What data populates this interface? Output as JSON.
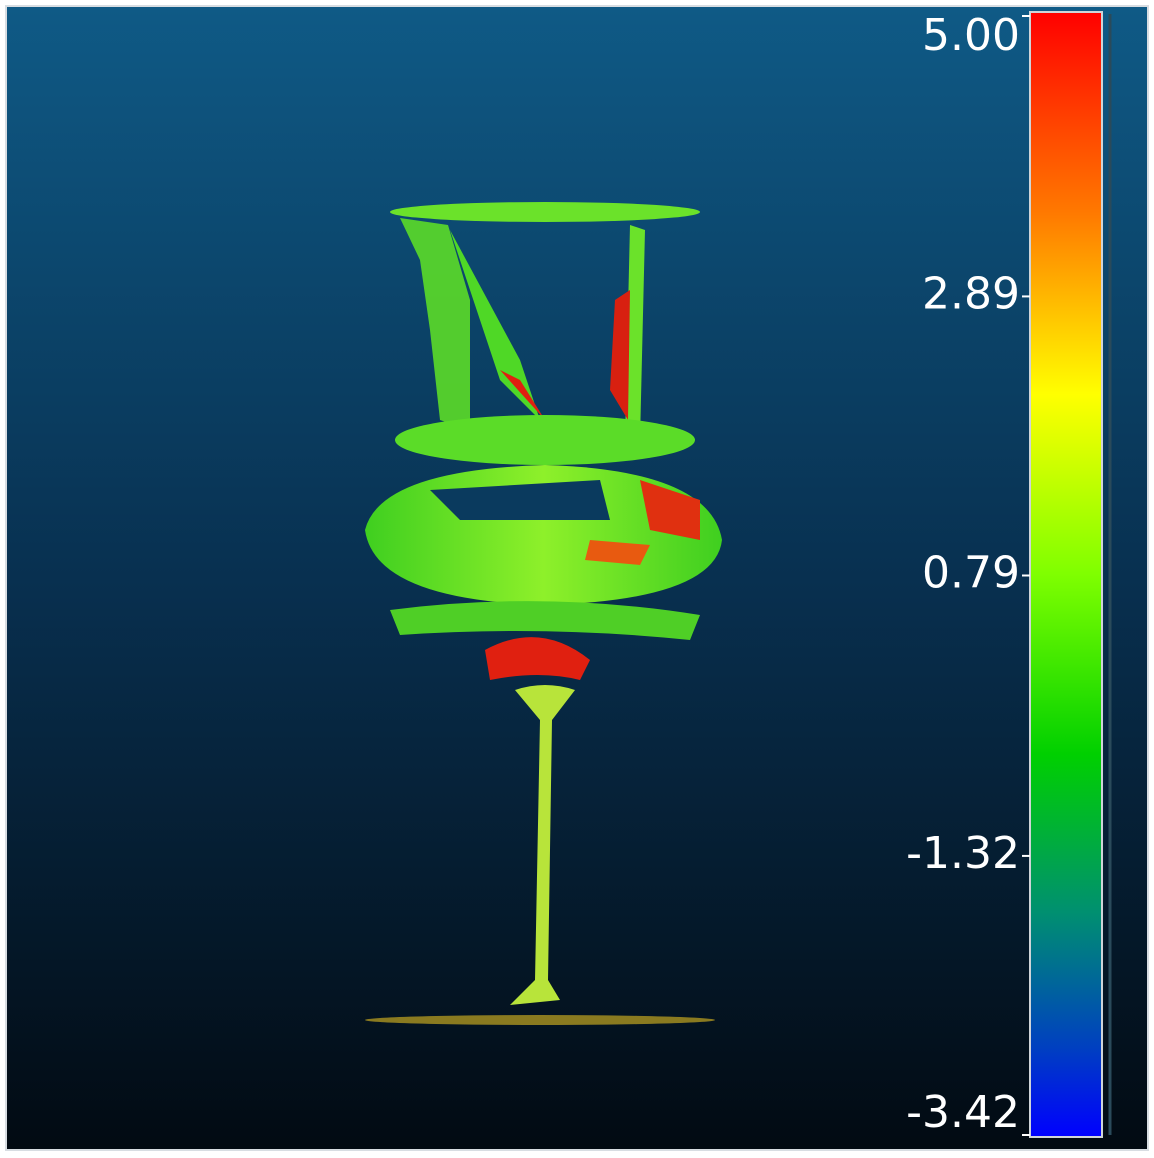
{
  "color_scale": {
    "lim": [
      -3.42,
      5
    ],
    "ticks": [
      {
        "value": 5,
        "label": "5.00"
      },
      {
        "value": 2.89,
        "label": "2.89"
      },
      {
        "value": 0.79,
        "label": "0.79"
      },
      {
        "value": -1.32,
        "label": "-1.32"
      },
      {
        "value": -3.42,
        "label": "-3.42"
      }
    ]
  }
}
